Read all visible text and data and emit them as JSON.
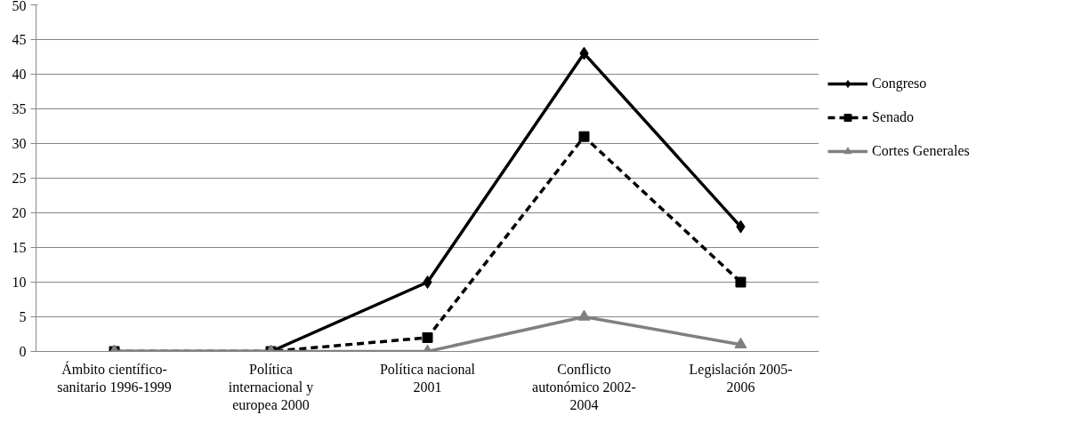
{
  "chart_data": {
    "type": "line",
    "categories": [
      "Ámbito científico-\nsanitario 1996-1999",
      "Política\ninternacional y\neuropea 2000",
      "Política nacional\n2001",
      "Conflicto\nautonómico 2002-\n2004",
      "Legislación 2005-\n2006"
    ],
    "series": [
      {
        "name": "Congreso",
        "color": "#000000",
        "values": [
          0,
          0,
          10,
          43,
          18
        ],
        "marker": "diamond",
        "line_style": "solid"
      },
      {
        "name": "Senado",
        "color": "#000000",
        "values": [
          0,
          0,
          2,
          31,
          10
        ],
        "marker": "square",
        "line_style": "dashed"
      },
      {
        "name": "Cortes Generales",
        "color": "#808080",
        "values": [
          0,
          0,
          0,
          5,
          1
        ],
        "marker": "triangle",
        "line_style": "solid"
      }
    ],
    "ylim": [
      0,
      50
    ],
    "yticks": [
      0,
      5,
      10,
      15,
      20,
      25,
      30,
      35,
      40,
      45,
      50
    ],
    "grid": "y",
    "legend": "right"
  }
}
